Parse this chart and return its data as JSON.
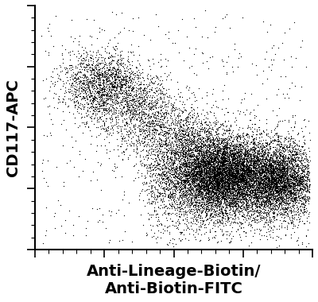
{
  "title": "",
  "xlabel": "Anti-Lineage-Biotin/\nAnti-Biotin-FITC",
  "ylabel": "CD117-APC",
  "xlim": [
    0,
    1
  ],
  "ylim": [
    0,
    1
  ],
  "background_color": "#ffffff",
  "dot_color": "#000000",
  "dot_size": 0.8,
  "dot_alpha": 1.0,
  "xlabel_fontsize": 14,
  "ylabel_fontsize": 14,
  "xlabel_fontweight": "bold",
  "ylabel_fontweight": "bold",
  "seed": 42
}
